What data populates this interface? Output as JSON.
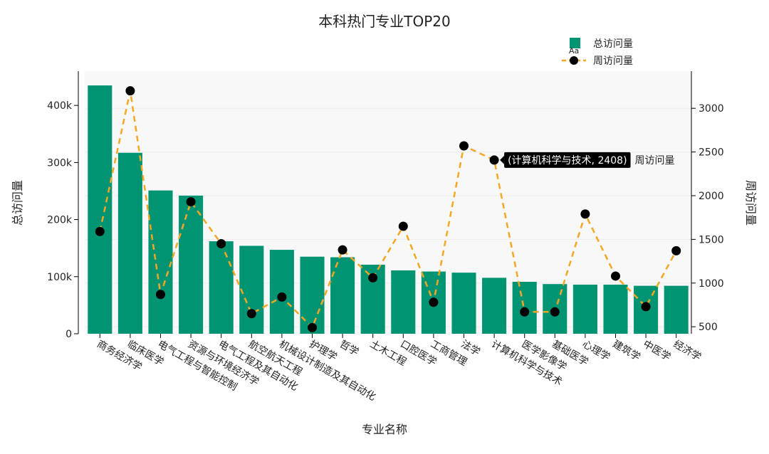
{
  "chart_data": {
    "type": "bar",
    "title": "本科热门专业TOP20",
    "xlabel": "专业名称",
    "ylabel": "总访问量",
    "y2label": "周访问量",
    "categories": [
      "商务经济学",
      "临床医学",
      "电气工程与智能控制",
      "资源与环境经济学",
      "电气工程及其自动化",
      "航空航天工程",
      "机械设计制造及其自动化",
      "护理学",
      "哲学",
      "土木工程",
      "口腔医学",
      "工商管理",
      "法学",
      "计算机科学与技术",
      "医学影像学",
      "基础医学",
      "心理学",
      "建筑学",
      "中医学",
      "经济学"
    ],
    "series": [
      {
        "name": "总访问量",
        "type": "bar",
        "axis": "left",
        "color": "#009473",
        "values": [
          435000,
          317000,
          251000,
          242000,
          162000,
          154000,
          147000,
          135000,
          134000,
          121000,
          111000,
          109000,
          107000,
          98000,
          91000,
          87000,
          86000,
          86000,
          84000,
          84000
        ]
      },
      {
        "name": "周访问量",
        "type": "line",
        "axis": "right",
        "color": "#f5a623",
        "marker_color": "#000000",
        "line_style": "dashed",
        "values": [
          1590,
          3200,
          870,
          1930,
          1450,
          650,
          840,
          490,
          1380,
          1060,
          1650,
          780,
          2570,
          2408,
          670,
          670,
          1790,
          1080,
          730,
          1370
        ]
      }
    ],
    "ylim": [
      0,
      460000
    ],
    "y_ticks": [
      0,
      100000,
      200000,
      300000,
      400000
    ],
    "y_tick_labels": [
      "0",
      "100k",
      "200k",
      "300k",
      "400k"
    ],
    "y2lim": [
      420,
      3425
    ],
    "y2_ticks": [
      500,
      1000,
      1500,
      2000,
      2500,
      3000
    ],
    "y2_tick_labels": [
      "500",
      "1000",
      "1500",
      "2000",
      "2500",
      "3000"
    ],
    "legend": {
      "placement": "top-right",
      "hint_glyph": "Aa"
    },
    "tooltip": {
      "index": 13,
      "label": "(计算机科学与技术, 2408)",
      "series_name": "周访问量"
    },
    "grid": true
  }
}
